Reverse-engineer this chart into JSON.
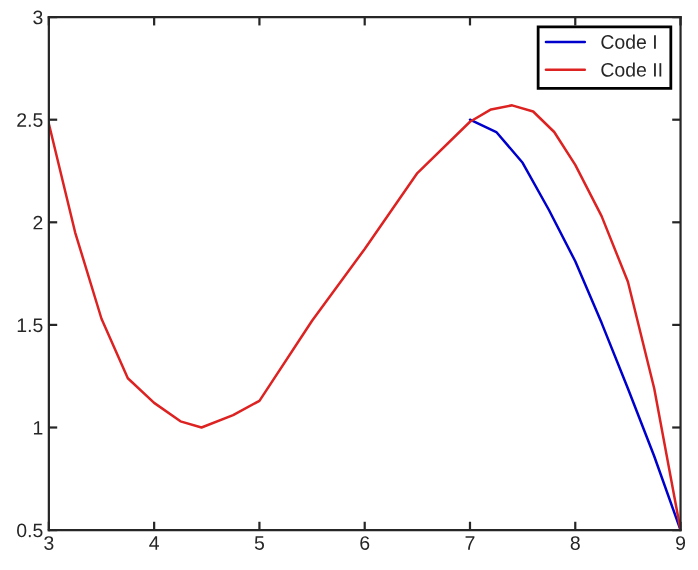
{
  "chart_data": {
    "type": "line",
    "xlim": [
      3,
      9
    ],
    "ylim": [
      0.5,
      3
    ],
    "xticks": [
      3,
      4,
      5,
      6,
      7,
      8,
      9
    ],
    "yticks": [
      0.5,
      1,
      1.5,
      2,
      2.5,
      3
    ],
    "grid": false,
    "legend": "top right",
    "series": [
      {
        "name": "Code I",
        "color": "#0000cc",
        "x": [
          7,
          7.25,
          7.5,
          7.75,
          8,
          8.25,
          8.5,
          8.75,
          9
        ],
        "values": [
          2.5,
          2.44,
          2.29,
          2.06,
          1.81,
          1.51,
          1.19,
          0.86,
          0.5
        ]
      },
      {
        "name": "Code II",
        "color": "#dd2222",
        "x": [
          3,
          3.25,
          3.5,
          3.75,
          4,
          4.25,
          4.45,
          4.75,
          5,
          5.5,
          6,
          6.5,
          7,
          7.2,
          7.4,
          7.6,
          7.8,
          8,
          8.25,
          8.5,
          8.75,
          9
        ],
        "values": [
          2.48,
          1.95,
          1.53,
          1.24,
          1.12,
          1.03,
          1.0,
          1.06,
          1.13,
          1.52,
          1.87,
          2.24,
          2.49,
          2.55,
          2.57,
          2.54,
          2.44,
          2.28,
          2.03,
          1.71,
          1.19,
          0.5
        ]
      }
    ]
  }
}
